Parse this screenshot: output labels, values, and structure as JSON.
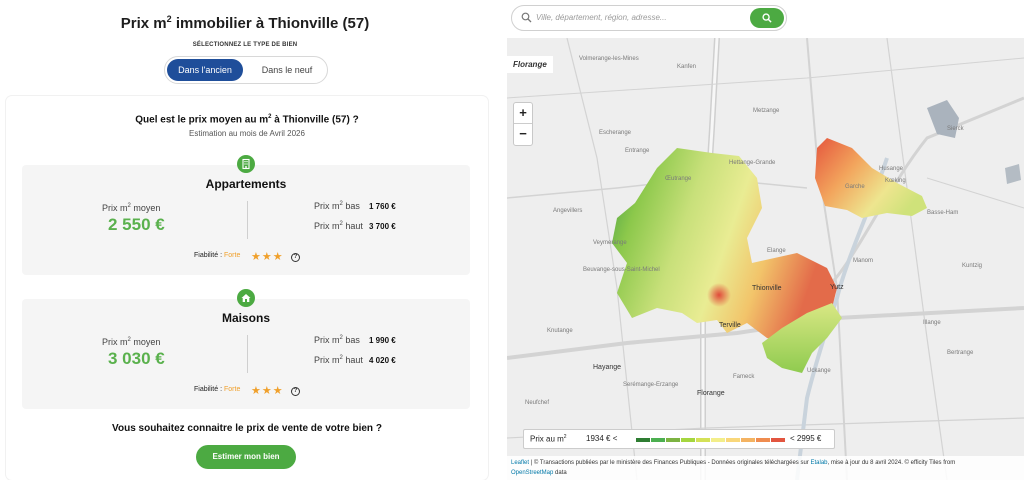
{
  "header": {
    "title_prefix": "Prix m",
    "title_sup": "2",
    "title_suffix": " immobilier à Thionville (57)",
    "type_label": "SÉLECTIONNEZ LE TYPE DE BIEN",
    "toggle_active": "Dans l'ancien",
    "toggle_other": "Dans le neuf"
  },
  "card": {
    "question_prefix": "Quel est le prix moyen au m",
    "question_sup": "2",
    "question_suffix": " à Thionville (57) ?",
    "estimate": "Estimation au mois de Avril 2026"
  },
  "apartments": {
    "title": "Appartements",
    "avg_label": "Prix m",
    "avg_label_suffix": " moyen",
    "avg_value": "2 550 €",
    "low_label": "Prix m",
    "low_label_suffix": " bas",
    "low_value": "1 760 €",
    "high_label": "Prix m",
    "high_label_suffix": " haut",
    "high_value": "3 700 €",
    "reliability_label": "Fiabilité :",
    "reliability_level": "Forte",
    "stars": "★★★",
    "help": "?"
  },
  "houses": {
    "title": "Maisons",
    "avg_label": "Prix m",
    "avg_label_suffix": " moyen",
    "avg_value": "3 030 €",
    "low_label": "Prix m",
    "low_label_suffix": " bas",
    "low_value": "1 990 €",
    "high_label": "Prix m",
    "high_label_suffix": " haut",
    "high_value": "4 020 €",
    "reliability_label": "Fiabilité :",
    "reliability_level": "Forte",
    "stars": "★★★",
    "help": "?"
  },
  "sell": {
    "question": "Vous souhaitez connaitre le prix de vente de votre bien ?",
    "cta": "Estimer mon bien"
  },
  "search": {
    "placeholder": "Ville, département, région, adresse...",
    "icon": "search-icon"
  },
  "map": {
    "city_tag": "Florange",
    "zoom_in": "+",
    "zoom_out": "−",
    "places": {
      "volmerange": "Volmerange-les-Mines",
      "kanfen": "Kanfen",
      "hettange": "Hettange-Grande",
      "oeutrange": "Œutrange",
      "garche": "Garche",
      "koeking": "Kœking",
      "angevillers": "Angevillers",
      "thionville": "Thionville",
      "yutz": "Yutz",
      "terville": "Terville",
      "florange": "Florange",
      "hayange": "Hayange",
      "beuvange": "Beuvange-sous-Saint-Michel",
      "manom": "Manom",
      "basse_ham": "Basse-Ham",
      "illange": "Illange",
      "neufchef": "Neufchef",
      "escherange": "Escherange",
      "entrange": "Entrange",
      "veymerange": "Veymerange",
      "elange": "Elange",
      "fameck": "Fameck",
      "uckange": "Uckange",
      "serémange": "Serémange-Erzange",
      "sierck": "Sierck",
      "husange": "Husange",
      "kuntzig": "Kuntzig",
      "bertrange": "Bertrange",
      "metzange": "Metzange",
      "knutange": "Knutange"
    }
  },
  "legend": {
    "label_prefix": "Prix au m",
    "label_sup": "2",
    "low": "1934 € <",
    "high": "< 2995 €",
    "colors": [
      "#2e7d32",
      "#4caf50",
      "#7cb342",
      "#a5d63f",
      "#d4e157",
      "#f3ee8a",
      "#f9d77a",
      "#f4b362",
      "#ef8c4f",
      "#e2553f"
    ]
  },
  "attribution": {
    "leaflet": "Leaflet",
    "text1": " | © Transactions publiées par le ministère des Finances Publiques - Données originales téléchargées sur ",
    "etalab": "Etalab",
    "text2": ", mise à jour du 8 avril 2024. © efficity Tiles from",
    "osm": "OpenStreetMap",
    "text3": " data"
  }
}
